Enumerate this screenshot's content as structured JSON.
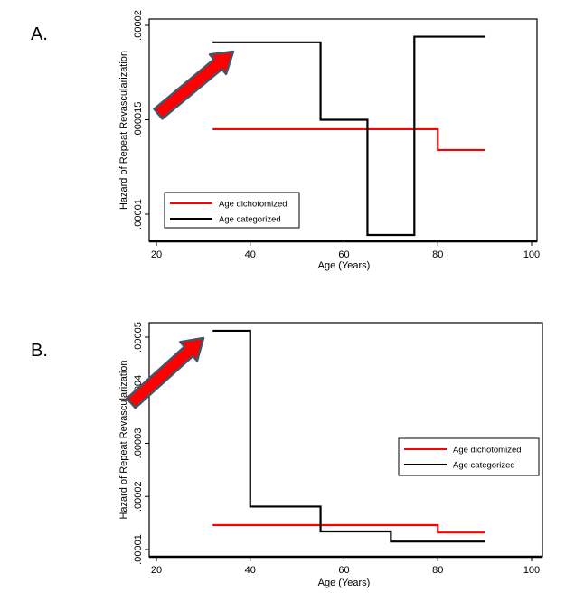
{
  "chart_data": [
    {
      "type": "line",
      "panel_label": "A.",
      "xlabel": "Age (Years)",
      "ylabel": "Hazard of Repeat Revascularization",
      "xlim": [
        20,
        100
      ],
      "ylim": [
        8.5e-06,
        2.05e-05
      ],
      "x_ticks": [
        20,
        40,
        60,
        80,
        100
      ],
      "x_tick_labels": [
        "20",
        "40",
        "60",
        "80",
        "100"
      ],
      "y_ticks": [
        1e-05,
        1.5e-05,
        2e-05
      ],
      "y_tick_labels": [
        ".00001",
        ".000015",
        ".00002"
      ],
      "legend_position": "bottom-left",
      "series": [
        {
          "name": "Age dichotomized",
          "color": "#ff0000",
          "steps": [
            {
              "x": 32,
              "y": 1.45e-05
            },
            {
              "x": 80,
              "y": 1.34e-05
            },
            {
              "x": 90,
              "y": 1.34e-05
            }
          ]
        },
        {
          "name": "Age categorized",
          "color": "#000000",
          "steps": [
            {
              "x": 32,
              "y": 1.91e-05
            },
            {
              "x": 55,
              "y": 1.5e-05
            },
            {
              "x": 65,
              "y": 8.9e-06
            },
            {
              "x": 75,
              "y": 1.94e-05
            },
            {
              "x": 90,
              "y": 1.94e-05
            }
          ]
        }
      ],
      "annotation": "red-arrow"
    },
    {
      "type": "line",
      "panel_label": "B.",
      "xlabel": "Age (Years)",
      "ylabel": "Hazard of Repeat Revascularization",
      "xlim": [
        20,
        100
      ],
      "ylim": [
        8.7e-06,
        5.27e-05
      ],
      "x_ticks": [
        20,
        40,
        60,
        80,
        100
      ],
      "x_tick_labels": [
        "20",
        "40",
        "60",
        "80",
        "100"
      ],
      "y_ticks": [
        1e-05,
        2e-05,
        3e-05,
        4e-05,
        5e-05
      ],
      "y_tick_labels": [
        ".00001",
        ".00002",
        ".00003",
        ".00004",
        ".00005"
      ],
      "legend_position": "right",
      "series": [
        {
          "name": "Age dichotomized",
          "color": "#ff0000",
          "steps": [
            {
              "x": 32,
              "y": 1.46e-05
            },
            {
              "x": 80,
              "y": 1.32e-05
            },
            {
              "x": 90,
              "y": 1.32e-05
            }
          ]
        },
        {
          "name": "Age categorized",
          "color": "#000000",
          "steps": [
            {
              "x": 32,
              "y": 5.12e-05
            },
            {
              "x": 40,
              "y": 1.81e-05
            },
            {
              "x": 55,
              "y": 1.34e-05
            },
            {
              "x": 70,
              "y": 1.15e-05
            },
            {
              "x": 90,
              "y": 1.15e-05
            }
          ]
        }
      ],
      "annotation": "red-arrow"
    }
  ],
  "colors": {
    "arrow_fill": "#ff0000",
    "arrow_stroke": "#44546a"
  }
}
